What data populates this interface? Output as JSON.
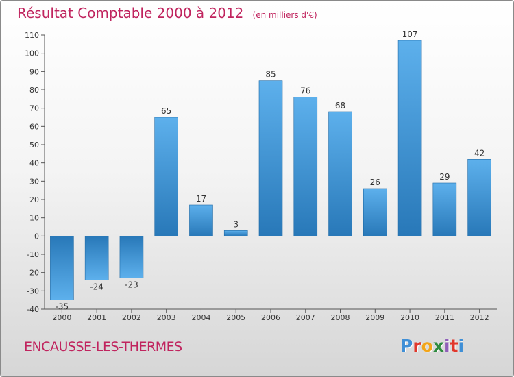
{
  "chart_data": {
    "type": "bar",
    "title": "Résultat Comptable 2000 à 2012",
    "unit": "(en milliers d'€)",
    "categories": [
      "2000",
      "2001",
      "2002",
      "2003",
      "2004",
      "2005",
      "2006",
      "2007",
      "2008",
      "2009",
      "2010",
      "2011",
      "2012"
    ],
    "values": [
      -35,
      -24,
      -23,
      65,
      17,
      3,
      85,
      76,
      68,
      26,
      107,
      29,
      42
    ],
    "ylim": [
      -40,
      110
    ],
    "ytick_step": 10,
    "xlabel": "",
    "ylabel": "",
    "grid": false
  },
  "footer": {
    "commune": "ENCAUSSE-LES-THERMES"
  },
  "logo": {
    "text": "Proxiti",
    "letter_colors": [
      "#3f8fd6",
      "#e0382c",
      "#f2a51a",
      "#2e8b3f",
      "#8f5fb8",
      "#e0382c",
      "#3f8fd6"
    ]
  },
  "colors": {
    "title": "#c0245e",
    "bar_dark": "#2878b8",
    "bar_light": "#5db0ec",
    "axis": "#555555"
  }
}
